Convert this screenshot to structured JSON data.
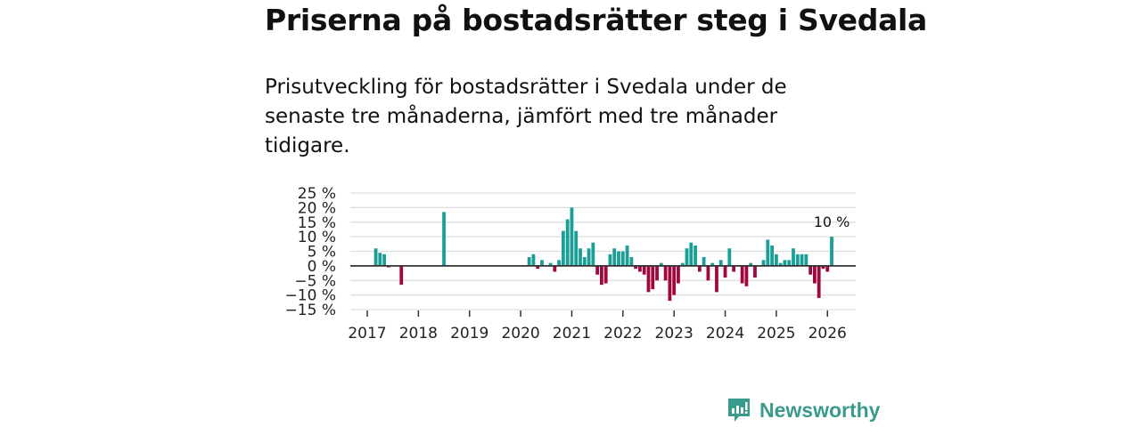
{
  "title": "Priserna på bostadsrätter steg i Svedala",
  "subtitle": "Prisutveckling för bostadsrätter i Svedala under de senaste tre månaderna, jämfört med tre månader tidigare.",
  "brand": "Newsworthy",
  "colors": {
    "positive": "#1a9e96",
    "negative": "#a0073f",
    "grid": "#dddddd",
    "brand": "#3a9a8c"
  },
  "chart_data": {
    "type": "bar",
    "title": "Priserna på bostadsrätter steg i Svedala",
    "xlabel": "",
    "ylabel": "",
    "ylim": [
      -15,
      25
    ],
    "grid": true,
    "start_month": "2017-01",
    "frequency": "monthly",
    "y_ticks": [
      "25 %",
      "20 %",
      "15 %",
      "10 %",
      "5 %",
      "0 %",
      "−5 %",
      "−10 %",
      "−15 %"
    ],
    "y_tick_values": [
      25,
      20,
      15,
      10,
      5,
      0,
      -5,
      -10,
      -15
    ],
    "x_ticks": [
      "2017",
      "2018",
      "2019",
      "2020",
      "2021",
      "2022",
      "2023",
      "2024",
      "2025",
      "2026"
    ],
    "annotation": "10 %",
    "values": [
      null,
      null,
      6,
      4.5,
      4,
      -0.5,
      null,
      null,
      -6.5,
      null,
      null,
      null,
      null,
      null,
      null,
      null,
      null,
      null,
      18.5,
      null,
      null,
      null,
      null,
      null,
      null,
      null,
      null,
      null,
      null,
      null,
      null,
      null,
      null,
      null,
      null,
      null,
      null,
      null,
      3,
      4,
      -1,
      2,
      null,
      1,
      -2,
      2,
      12,
      16,
      20,
      12,
      6,
      3,
      6,
      8,
      -3,
      -6.5,
      -6,
      4,
      6,
      5,
      5,
      7,
      3,
      -1,
      -2,
      -3,
      -9,
      -8,
      -5,
      1,
      -5,
      -12,
      -10,
      -6,
      1,
      6,
      8,
      7,
      -2,
      3,
      -5,
      1,
      -9,
      2,
      -4,
      6,
      -2,
      null,
      -6,
      -7,
      1,
      -4,
      null,
      2,
      9,
      7,
      4,
      1,
      2,
      2,
      6,
      4,
      4,
      4,
      -3,
      -6,
      -11,
      -1,
      -2,
      10
    ]
  }
}
